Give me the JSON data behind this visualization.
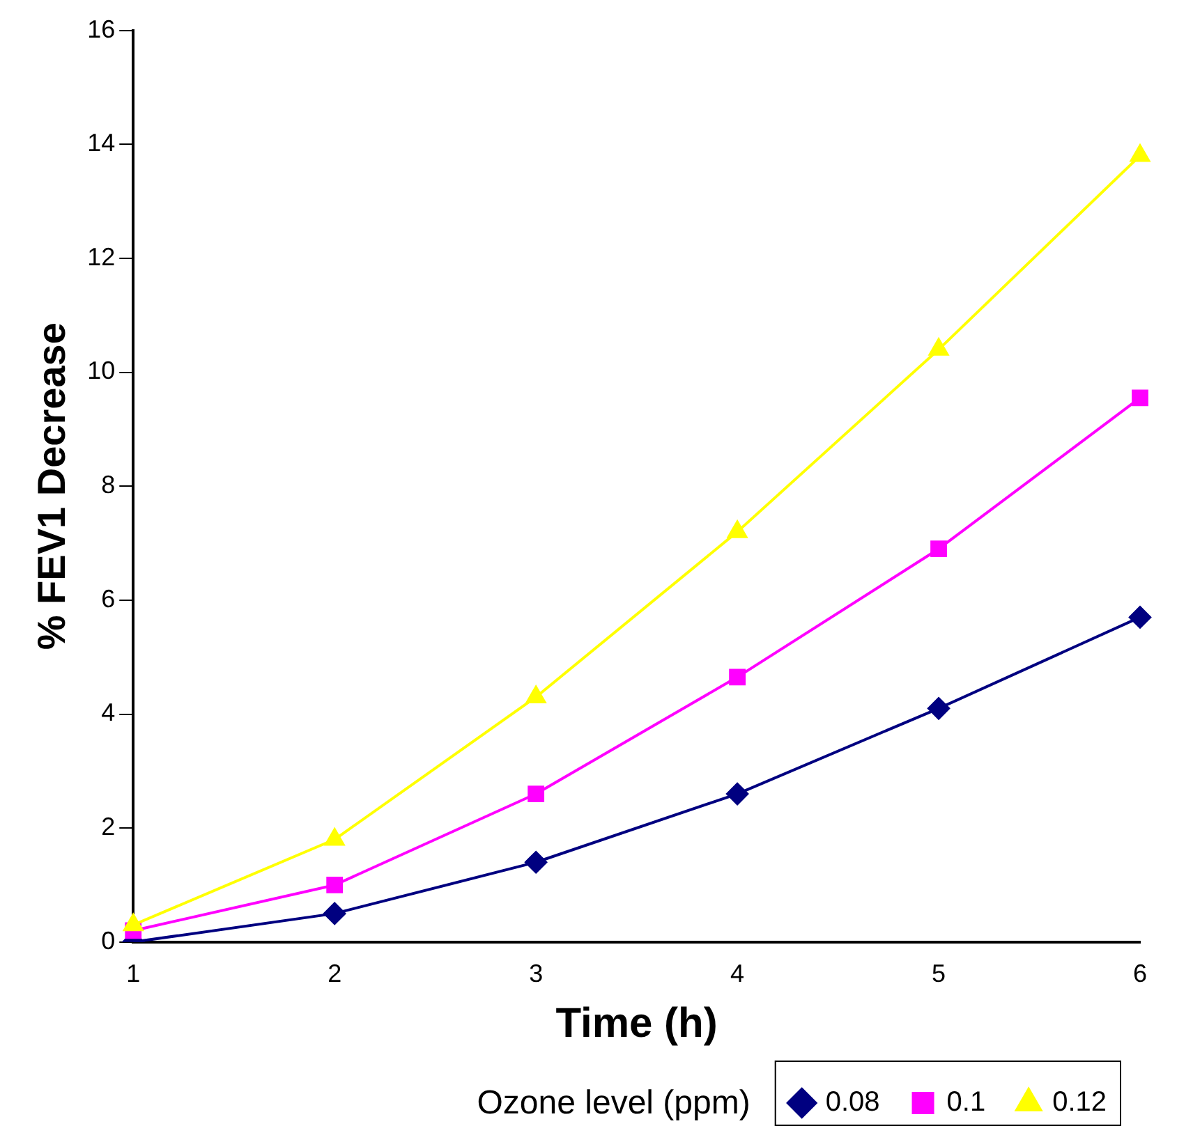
{
  "chart_data": {
    "type": "line",
    "xlabel": "Time (h)",
    "ylabel": "% FEV1 Decrease",
    "legend_title": "Ozone level (ppm)",
    "legend": "bottom right",
    "grid": false,
    "categories": [
      "1",
      "2",
      "3",
      "4",
      "5",
      "6"
    ],
    "ylim": [
      0,
      16
    ],
    "yticks": [
      0,
      2,
      4,
      6,
      8,
      10,
      12,
      14,
      16
    ],
    "series": [
      {
        "name": "0.08",
        "color": "#000080",
        "marker": "diamond",
        "values": [
          0,
          0.5,
          1.4,
          2.6,
          4.1,
          5.7
        ]
      },
      {
        "name": "0.1",
        "color": "#ff00ff",
        "marker": "square",
        "values": [
          0.2,
          1.0,
          2.6,
          4.65,
          6.9,
          9.55
        ]
      },
      {
        "name": "0.12",
        "color": "#ffff00",
        "marker": "triangle",
        "values": [
          0.3,
          1.8,
          4.3,
          7.2,
          10.4,
          13.8
        ]
      }
    ]
  }
}
